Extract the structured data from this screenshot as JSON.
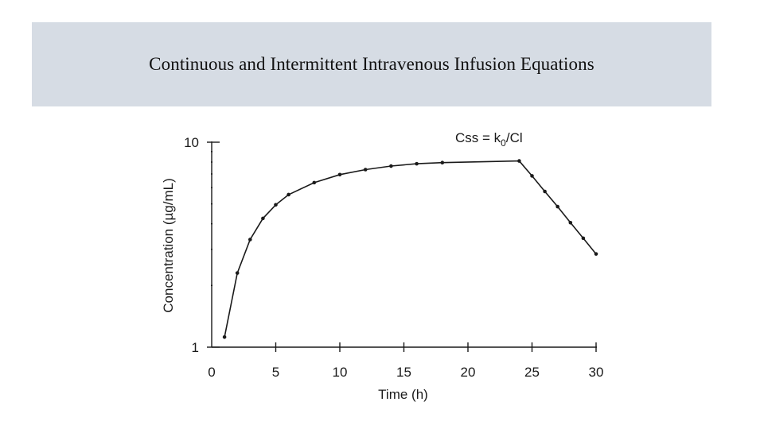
{
  "title": "Continuous and Intermittent Intravenous Infusion Equations",
  "colors": {
    "title_background": "#d6dce4",
    "ink": "#1a1a1a"
  },
  "chart_data": {
    "type": "line",
    "title": "",
    "xlabel": "Time (h)",
    "ylabel": "Concentration (µg/mL)",
    "xlim": [
      0,
      30
    ],
    "ylim": [
      1,
      10
    ],
    "yscale": "log",
    "grid": false,
    "x_ticks": [
      0,
      5,
      10,
      15,
      20,
      25,
      30
    ],
    "x_tick_labels": [
      "0",
      "5",
      "10",
      "15",
      "20",
      "25",
      "30"
    ],
    "y_ticks": [
      1,
      10
    ],
    "y_tick_labels": [
      "1",
      "10"
    ],
    "annotation": {
      "prefix": "Css = k",
      "subscript": "0",
      "suffix": "/Cl",
      "at": {
        "x": 21,
        "y": 8.9
      }
    },
    "series": [
      {
        "x": [
          1,
          2,
          3,
          4,
          5,
          6,
          8,
          10,
          12,
          14,
          16,
          18,
          24,
          25,
          26,
          27,
          28,
          29,
          30
        ],
        "y": [
          1.12,
          2.3,
          3.35,
          4.25,
          4.95,
          5.55,
          6.35,
          6.95,
          7.35,
          7.65,
          7.85,
          7.95,
          8.1,
          6.85,
          5.75,
          4.85,
          4.05,
          3.4,
          2.85
        ]
      }
    ]
  }
}
